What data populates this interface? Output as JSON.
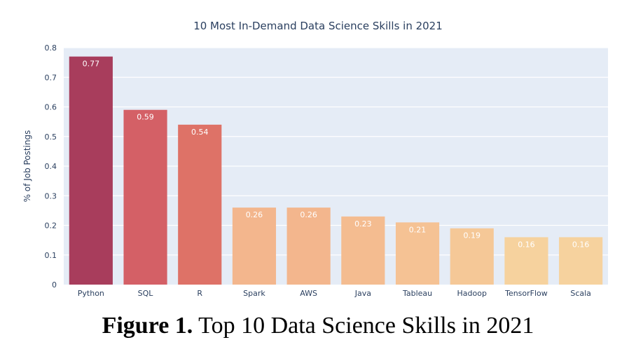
{
  "chart_data": {
    "type": "bar",
    "title": "10 Most In-Demand Data Science Skills in 2021",
    "xlabel": "",
    "ylabel": "% of Job Postings",
    "categories": [
      "Python",
      "SQL",
      "R",
      "Spark",
      "AWS",
      "Java",
      "Tableau",
      "Hadoop",
      "TensorFlow",
      "Scala"
    ],
    "values": [
      0.77,
      0.59,
      0.54,
      0.26,
      0.26,
      0.23,
      0.21,
      0.19,
      0.16,
      0.16
    ],
    "data_labels": [
      "0.77",
      "0.59",
      "0.54",
      "0.26",
      "0.26",
      "0.23",
      "0.21",
      "0.19",
      "0.16",
      "0.16"
    ],
    "ylim": [
      0,
      0.8
    ],
    "yticks": [
      0,
      0.1,
      0.2,
      0.3,
      0.4,
      0.5,
      0.6,
      0.7,
      0.8
    ],
    "ytick_labels": [
      "0",
      "0.1",
      "0.2",
      "0.3",
      "0.4",
      "0.5",
      "0.6",
      "0.7",
      "0.8"
    ],
    "grid": true,
    "colors": [
      "#a83d5c",
      "#d46066",
      "#de7267",
      "#f3b68d",
      "#f3b68d",
      "#f4bc90",
      "#f5c294",
      "#f5c897",
      "#f6d29e",
      "#f6d29e"
    ],
    "plot_background": "#e5ecf6",
    "label_color": "#ffffff"
  },
  "caption": {
    "label": "Figure 1.",
    "text": " Top 10 Data Science Skills in 2021"
  }
}
